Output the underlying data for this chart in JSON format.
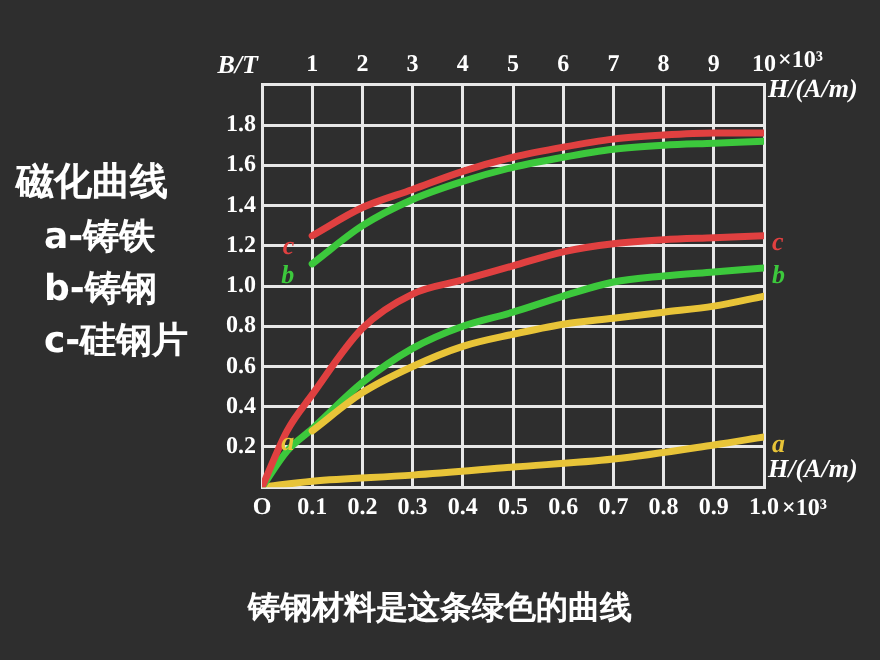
{
  "chart_data": {
    "type": "line",
    "title": "磁化曲线",
    "subtitle": "铸钢材料是这条绿色的曲线",
    "annotations": [
      "a-铸铁",
      "b-铸钢",
      "c-硅钢片",
      "×10³",
      "×10³"
    ],
    "ylabel": "B/T",
    "xlabel": "H/(A/m)",
    "x2label": "H/(A/m)",
    "xlim": [
      0,
      1
    ],
    "xticks": [
      {
        "value": 0,
        "label": "O"
      },
      0.1,
      0.2,
      0.3,
      0.4,
      0.5,
      0.6,
      0.7,
      0.8,
      0.9,
      {
        "value": 1,
        "label": "1.0"
      }
    ],
    "x2lim": [
      0,
      10
    ],
    "x2ticks": [
      1,
      2,
      3,
      4,
      5,
      6,
      7,
      8,
      9,
      10
    ],
    "ylim": [
      0,
      2
    ],
    "yticks": [
      0.2,
      0.4,
      0.6,
      0.8,
      {
        "value": 1,
        "label": "1.0"
      },
      1.2,
      1.4,
      1.6,
      1.8
    ],
    "grid": true,
    "legend": false,
    "marker": "none",
    "line_style": "solid",
    "series": [
      {
        "name": "c",
        "color": "#e04040",
        "axis": "x2",
        "x": [
          1,
          2,
          3,
          4,
          5,
          6,
          7,
          8,
          9,
          10
        ],
        "values": [
          1.25,
          1.39,
          1.48,
          1.57,
          1.64,
          1.69,
          1.73,
          1.75,
          1.76,
          1.76
        ]
      },
      {
        "name": "b",
        "color": "#3cc83c",
        "axis": "x2",
        "x": [
          1,
          2,
          3,
          4,
          5,
          6,
          7,
          8,
          9,
          10
        ],
        "values": [
          1.11,
          1.3,
          1.43,
          1.52,
          1.59,
          1.64,
          1.68,
          1.7,
          1.71,
          1.72
        ]
      },
      {
        "name": "a",
        "color": "#e8c438",
        "axis": "x2",
        "x": [
          1,
          2,
          3,
          4,
          5,
          6,
          7,
          8,
          9,
          10
        ],
        "values": [
          0.28,
          0.47,
          0.6,
          0.7,
          0.76,
          0.81,
          0.84,
          0.87,
          0.9,
          0.95
        ]
      },
      {
        "name": "c",
        "color": "#e04040",
        "x": [
          0,
          0.05,
          0.1,
          0.2,
          0.3,
          0.4,
          0.5,
          0.6,
          0.7,
          0.8,
          0.9,
          1
        ],
        "values": [
          0,
          0.28,
          0.46,
          0.79,
          0.96,
          1.03,
          1.1,
          1.17,
          1.21,
          1.23,
          1.24,
          1.25
        ]
      },
      {
        "name": "b",
        "color": "#3cc83c",
        "x": [
          0,
          0.05,
          0.1,
          0.2,
          0.3,
          0.4,
          0.5,
          0.6,
          0.7,
          0.8,
          0.9,
          1
        ],
        "values": [
          0,
          0.18,
          0.29,
          0.52,
          0.69,
          0.8,
          0.87,
          0.95,
          1.02,
          1.05,
          1.07,
          1.09
        ]
      },
      {
        "name": "a",
        "color": "#e8c438",
        "x": [
          0,
          0.1,
          0.3,
          0.5,
          0.7,
          0.9,
          1
        ],
        "values": [
          0,
          0.03,
          0.06,
          0.1,
          0.14,
          0.21,
          0.25
        ]
      }
    ]
  }
}
